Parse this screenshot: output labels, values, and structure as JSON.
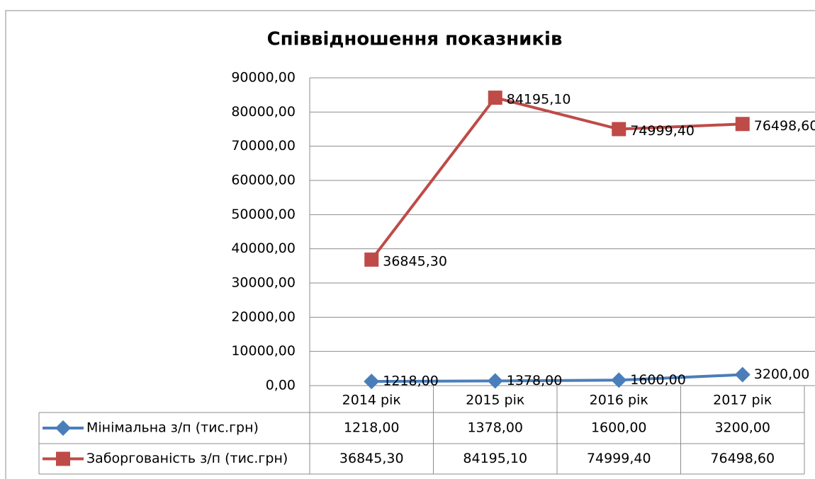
{
  "chart_data": {
    "type": "line",
    "title": "Співвідношення показників",
    "categories": [
      "2014 рік",
      "2015 рік",
      "2016 рік",
      "2017 рік"
    ],
    "series": [
      {
        "name": "Мінімальна з/п (тис.грн)",
        "color": "#4a7ebb",
        "marker": "diamond",
        "values": [
          1218,
          1378,
          1600,
          3200
        ],
        "value_labels": [
          "1218,00",
          "1378,00",
          "1600,00",
          "3200,00"
        ]
      },
      {
        "name": "Заборгованість з/п (тис.грн)",
        "color": "#be4b48",
        "marker": "square",
        "values": [
          36845.3,
          84195.1,
          74999.4,
          76498.6
        ],
        "value_labels": [
          "36845,30",
          "84195,10",
          "74999,40",
          "76498,60"
        ]
      }
    ],
    "ylim": [
      0,
      90000
    ],
    "yticks": [
      {
        "value": 0,
        "label": "0,00"
      },
      {
        "value": 10000,
        "label": "10000,00"
      },
      {
        "value": 20000,
        "label": "20000,00"
      },
      {
        "value": 30000,
        "label": "30000,00"
      },
      {
        "value": 40000,
        "label": "40000,00"
      },
      {
        "value": 50000,
        "label": "50000,00"
      },
      {
        "value": 60000,
        "label": "60000,00"
      },
      {
        "value": 70000,
        "label": "70000,00"
      },
      {
        "value": 80000,
        "label": "80000,00"
      },
      {
        "value": 90000,
        "label": "90000,00"
      }
    ],
    "grid": true,
    "data_table": true
  }
}
